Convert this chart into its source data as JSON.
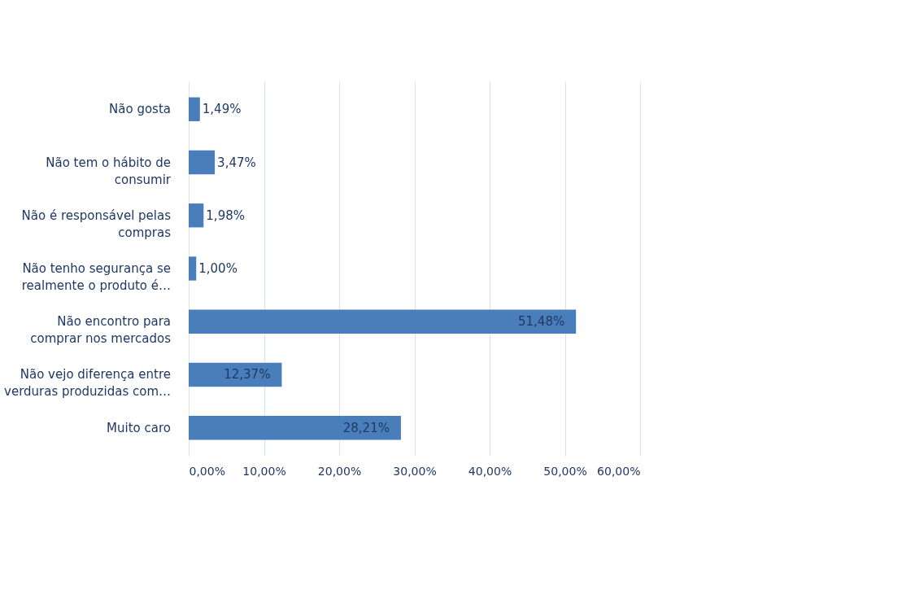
{
  "chart_data": {
    "type": "bar",
    "orientation": "horizontal",
    "categories": [
      "Não gosta",
      "Não tem o hábito de consumir",
      "Não é responsável pelas compras",
      "Não tenho segurança se realmente o produto é…",
      "Não encontro para comprar nos mercados",
      "Não vejo diferença entre verduras produzidas com…",
      "Muito caro"
    ],
    "values": [
      1.49,
      3.47,
      1.98,
      1.0,
      51.48,
      12.37,
      28.21
    ],
    "value_labels": [
      "1,49%",
      "3,47%",
      "1,98%",
      "1,00%",
      "51,48%",
      "12,37%",
      "28,21%"
    ],
    "color": "#4a7ebb",
    "xlim": [
      0,
      60
    ],
    "xticks": [
      {
        "value": 0,
        "label": "0,00%"
      },
      {
        "value": 10,
        "label": "10,00%"
      },
      {
        "value": 20,
        "label": "20,00%"
      },
      {
        "value": 30,
        "label": "30,00%"
      },
      {
        "value": 40,
        "label": "40,00%"
      },
      {
        "value": 50,
        "label": "50,00%"
      },
      {
        "value": 60,
        "label": "60,00%"
      }
    ],
    "grid": "x"
  }
}
